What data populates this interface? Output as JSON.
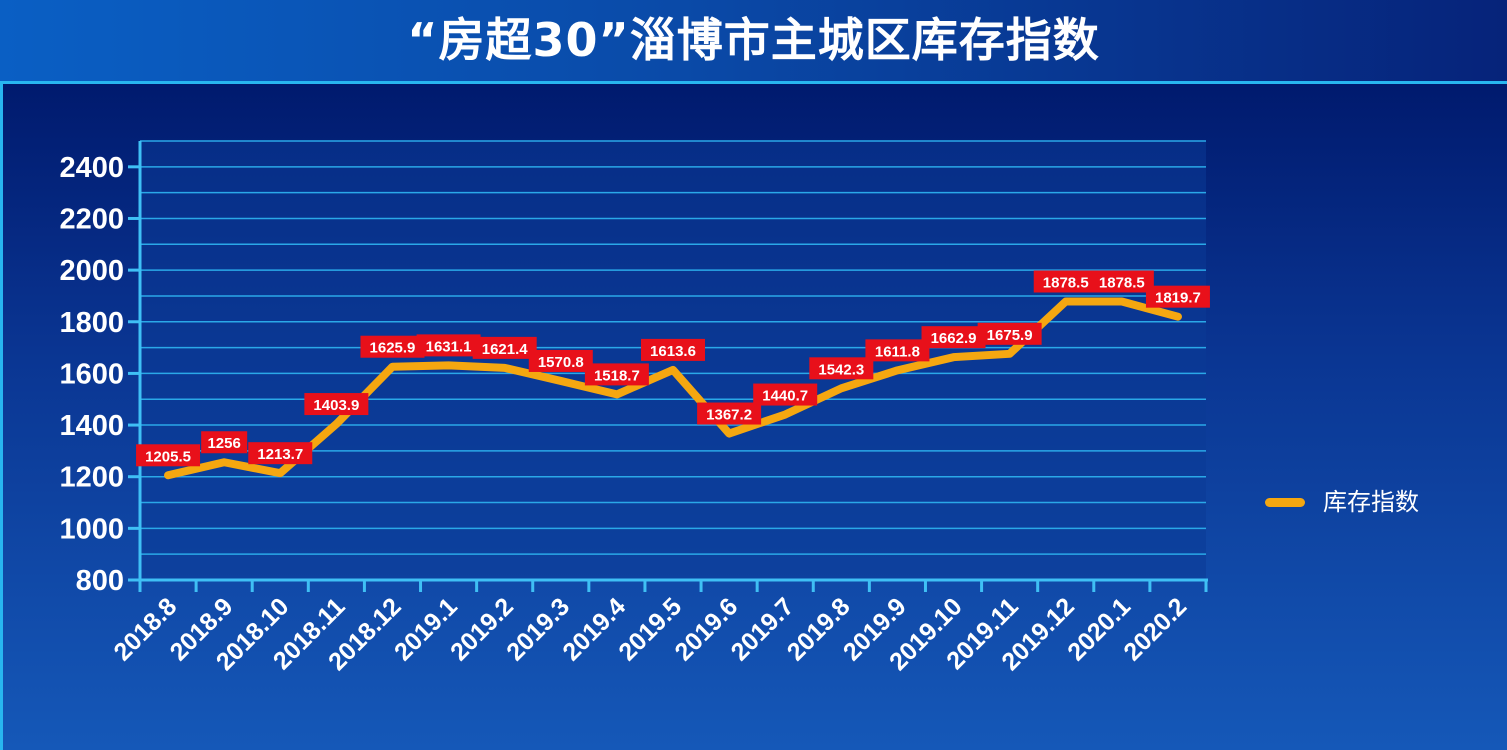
{
  "title": "“房超30”淄博市主城区库存指数",
  "colors": {
    "line": "#f5a710",
    "label_bg": "#e8101a",
    "grid": "#2aa8e8",
    "axis": "#3fc0f5",
    "text": "#ffffff"
  },
  "chart_data": {
    "type": "line",
    "categories": [
      "2018.8",
      "2018.9",
      "2018.10",
      "2018.11",
      "2018.12",
      "2019.1",
      "2019.2",
      "2019.3",
      "2019.4",
      "2019.5",
      "2019.6",
      "2019.7",
      "2019.8",
      "2019.9",
      "2019.10",
      "2019.11",
      "2019.12",
      "2020.1",
      "2020.2"
    ],
    "series": [
      {
        "name": "库存指数",
        "values": [
          1205.5,
          1256,
          1213.7,
          1403.9,
          1625.9,
          1631.1,
          1621.4,
          1570.8,
          1518.7,
          1613.6,
          1367.2,
          1440.7,
          1542.3,
          1611.8,
          1662.9,
          1675.9,
          1878.5,
          1878.5,
          1819.7
        ]
      }
    ],
    "value_labels": [
      "1205.5",
      "1256",
      "1213.7",
      "1403.9",
      "1625.9",
      "1631.1",
      "1621.4",
      "1570.8",
      "1518.7",
      "1613.6",
      "1367.2",
      "1440.7",
      "1542.3",
      "1611.8",
      "1662.9",
      "1675.9",
      "1878.5",
      "1878.5",
      "1819.7"
    ],
    "ylim": [
      800,
      2500
    ],
    "yticks": [
      800,
      1000,
      1200,
      1400,
      1600,
      1800,
      2000,
      2200,
      2400
    ],
    "grid": true,
    "legend": "right"
  }
}
